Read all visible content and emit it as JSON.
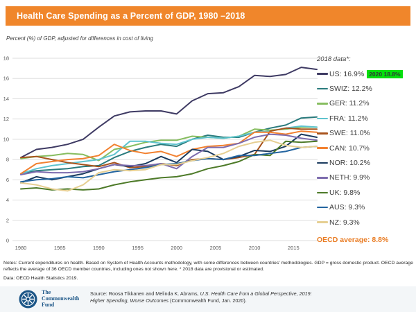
{
  "header": {
    "title": "Health Care Spending as a Percent of GDP, 1980 –2018",
    "accent_color": "#F0862B"
  },
  "subtitle": "Percent (%) of GDP, adjusted for differences in cost of living",
  "legend": {
    "heading": "2018 data*:",
    "items": [
      {
        "label": "US: 16.9%",
        "color": "#3E3A63",
        "badge": {
          "text": "2020 18.8%",
          "bg": "#04DF0D"
        }
      },
      {
        "label": "SWIZ: 12.2%",
        "color": "#2A7B7D"
      },
      {
        "label": "GER: 11.2%",
        "color": "#86BD5F"
      },
      {
        "label": "FRA: 11.2%",
        "color": "#5FC3CE"
      },
      {
        "label": "SWE: 11.0%",
        "color": "#A8531C"
      },
      {
        "label": "CAN: 10.7%",
        "color": "#F28130"
      },
      {
        "label": "NOR: 10.2%",
        "color": "#1B3A5E"
      },
      {
        "label": "NETH: 9.9%",
        "color": "#7D6CAE"
      },
      {
        "label": "UK: 9.8%",
        "color": "#4D7A28"
      },
      {
        "label": "AUS: 9.3%",
        "color": "#2465A0"
      },
      {
        "label": "NZ: 9.3%",
        "color": "#E6CF92"
      }
    ],
    "oecd_average": {
      "label": "OECD average: 8.8%",
      "color": "#E97C24"
    }
  },
  "chart_data": {
    "type": "line",
    "title": "Health Care Spending as a Percent of GDP, 1980–2018",
    "xlabel": "",
    "ylabel": "Percent (%) of GDP",
    "ylim": [
      0,
      18
    ],
    "yticks": [
      0,
      2,
      4,
      6,
      8,
      10,
      12,
      14,
      16,
      18
    ],
    "xticks": [
      1980,
      1985,
      1990,
      1995,
      2000,
      2005,
      2010,
      2015
    ],
    "grid": true,
    "legend_position": "right",
    "x": [
      1980,
      1982,
      1984,
      1986,
      1988,
      1990,
      1992,
      1994,
      1996,
      1998,
      2000,
      2002,
      2004,
      2006,
      2008,
      2010,
      2012,
      2014,
      2016,
      2018
    ],
    "series": [
      {
        "name": "US",
        "color": "#3E3A63",
        "values": [
          8.2,
          9.0,
          9.2,
          9.5,
          10.0,
          11.2,
          12.3,
          12.7,
          12.8,
          12.8,
          12.5,
          13.8,
          14.5,
          14.6,
          15.2,
          16.3,
          16.2,
          16.4,
          17.1,
          16.9
        ]
      },
      {
        "name": "SWIZ",
        "color": "#2A7B7D",
        "values": [
          6.6,
          6.9,
          7.0,
          7.1,
          7.3,
          7.4,
          8.2,
          8.8,
          9.2,
          9.5,
          9.3,
          10.0,
          10.4,
          10.2,
          10.2,
          10.7,
          11.1,
          11.4,
          12.1,
          12.2
        ]
      },
      {
        "name": "GER",
        "color": "#86BD5F",
        "values": [
          8.1,
          8.3,
          8.4,
          8.6,
          8.5,
          7.9,
          9.0,
          9.3,
          9.7,
          9.9,
          9.9,
          10.3,
          10.2,
          10.1,
          10.3,
          11.0,
          10.9,
          11.0,
          11.2,
          11.2
        ]
      },
      {
        "name": "FRA",
        "color": "#5FC3CE",
        "values": [
          6.6,
          7.1,
          7.4,
          7.6,
          7.8,
          8.0,
          8.5,
          9.8,
          9.8,
          9.6,
          9.5,
          10.0,
          10.2,
          10.1,
          10.3,
          10.7,
          10.8,
          11.1,
          11.3,
          11.2
        ]
      },
      {
        "name": "SWE",
        "color": "#A8531C",
        "values": [
          8.2,
          8.3,
          8.0,
          7.7,
          7.5,
          7.3,
          7.7,
          7.2,
          7.3,
          7.6,
          7.4,
          8.0,
          8.1,
          8.0,
          8.2,
          8.5,
          10.8,
          11.1,
          11.0,
          11.0
        ]
      },
      {
        "name": "CAN",
        "color": "#F28130",
        "values": [
          6.6,
          7.6,
          7.8,
          8.0,
          8.1,
          8.4,
          9.5,
          8.9,
          8.6,
          8.8,
          8.3,
          9.0,
          9.3,
          9.4,
          9.6,
          10.7,
          10.7,
          10.5,
          10.8,
          10.7
        ]
      },
      {
        "name": "NOR",
        "color": "#1B3A5E",
        "values": [
          5.7,
          6.3,
          6.0,
          6.3,
          6.6,
          7.1,
          7.5,
          7.3,
          7.6,
          8.3,
          7.7,
          9.0,
          8.8,
          8.0,
          8.3,
          8.9,
          8.8,
          9.3,
          10.5,
          10.2
        ]
      },
      {
        "name": "NETH",
        "color": "#7D6CAE",
        "values": [
          6.5,
          6.8,
          6.7,
          6.7,
          6.8,
          7.1,
          7.5,
          7.4,
          7.4,
          7.6,
          7.1,
          8.3,
          9.2,
          9.2,
          9.6,
          10.2,
          10.5,
          10.4,
          10.1,
          9.9
        ]
      },
      {
        "name": "UK",
        "color": "#4D7A28",
        "values": [
          5.1,
          5.2,
          5.0,
          5.1,
          5.0,
          5.1,
          5.5,
          5.8,
          6.0,
          6.2,
          6.3,
          6.6,
          7.1,
          7.4,
          7.8,
          8.5,
          8.4,
          9.8,
          9.7,
          9.8
        ]
      },
      {
        "name": "AUS",
        "color": "#2465A0",
        "values": [
          5.8,
          6.0,
          6.1,
          6.3,
          6.2,
          6.5,
          6.8,
          7.0,
          7.2,
          7.5,
          7.6,
          7.9,
          8.1,
          8.0,
          8.4,
          8.4,
          8.6,
          8.8,
          9.2,
          9.3
        ]
      },
      {
        "name": "NZ",
        "color": "#E6CF92",
        "values": [
          5.7,
          5.5,
          5.1,
          4.9,
          5.5,
          6.7,
          7.0,
          6.9,
          7.0,
          7.5,
          7.5,
          7.9,
          8.2,
          8.6,
          9.3,
          9.7,
          9.9,
          9.4,
          9.2,
          9.3
        ]
      }
    ]
  },
  "notes": {
    "text": "Notes: Current expenditures on health. Based on System of Health Accounts methodology, with some differences between countries' methodologies. GDP = gross domestic product. OECD average reflects the average of 36 OECD member countries, including ones not shown here. * 2018 data are provisional or estimated.",
    "data_line": "Data: OECD Health Statistics 2019."
  },
  "footer": {
    "org_name_line1": "The",
    "org_name_line2": "Commonwealth",
    "org_name_line3": "Fund",
    "source_prefix": "Source: Roosa Tikkanen and Melinda K. Abrams, ",
    "source_title": "U.S. Health Care from a Global Perspective, 2019: Higher Spending, Worse Outcomes",
    "source_suffix": " (Commonwealth Fund, Jan. 2020)."
  }
}
